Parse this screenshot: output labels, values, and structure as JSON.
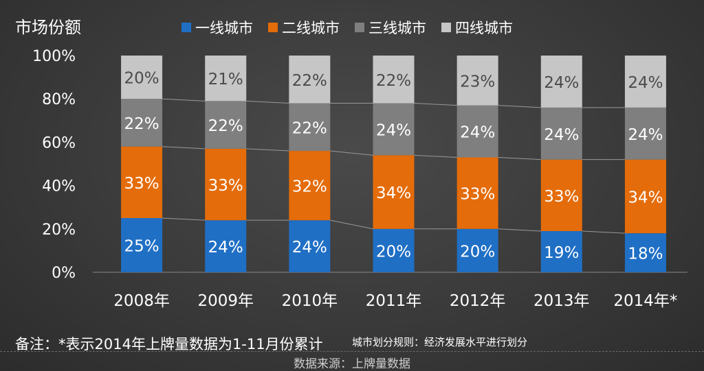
{
  "chart_data": {
    "type": "bar",
    "stacked": true,
    "ylabel": "市场份额",
    "categories": [
      "2008年",
      "2009年",
      "2010年",
      "2011年",
      "2012年",
      "2013年",
      "2014年*"
    ],
    "y_ticks": [
      "0%",
      "20%",
      "40%",
      "60%",
      "80%",
      "100%"
    ],
    "ylim": [
      0,
      100
    ],
    "legend_position": "top",
    "series": [
      {
        "name": "一线城市",
        "color": "#1f6fc5",
        "values": [
          25,
          24,
          24,
          20,
          20,
          19,
          18
        ]
      },
      {
        "name": "二线城市",
        "color": "#e46c0a",
        "values": [
          33,
          33,
          32,
          34,
          33,
          33,
          34
        ]
      },
      {
        "name": "三线城市",
        "color": "#7f7f7f",
        "values": [
          22,
          22,
          22,
          24,
          24,
          24,
          24
        ]
      },
      {
        "name": "四线城市",
        "color": "#c6c6c6",
        "values": [
          20,
          21,
          22,
          22,
          23,
          24,
          24
        ]
      }
    ]
  },
  "footer": {
    "note": "备注：*表示2014年上牌量数据为1-11月份累计",
    "rule": "城市划分规则：经济发展水平进行划分",
    "source": "数据来源：上牌量数据"
  }
}
